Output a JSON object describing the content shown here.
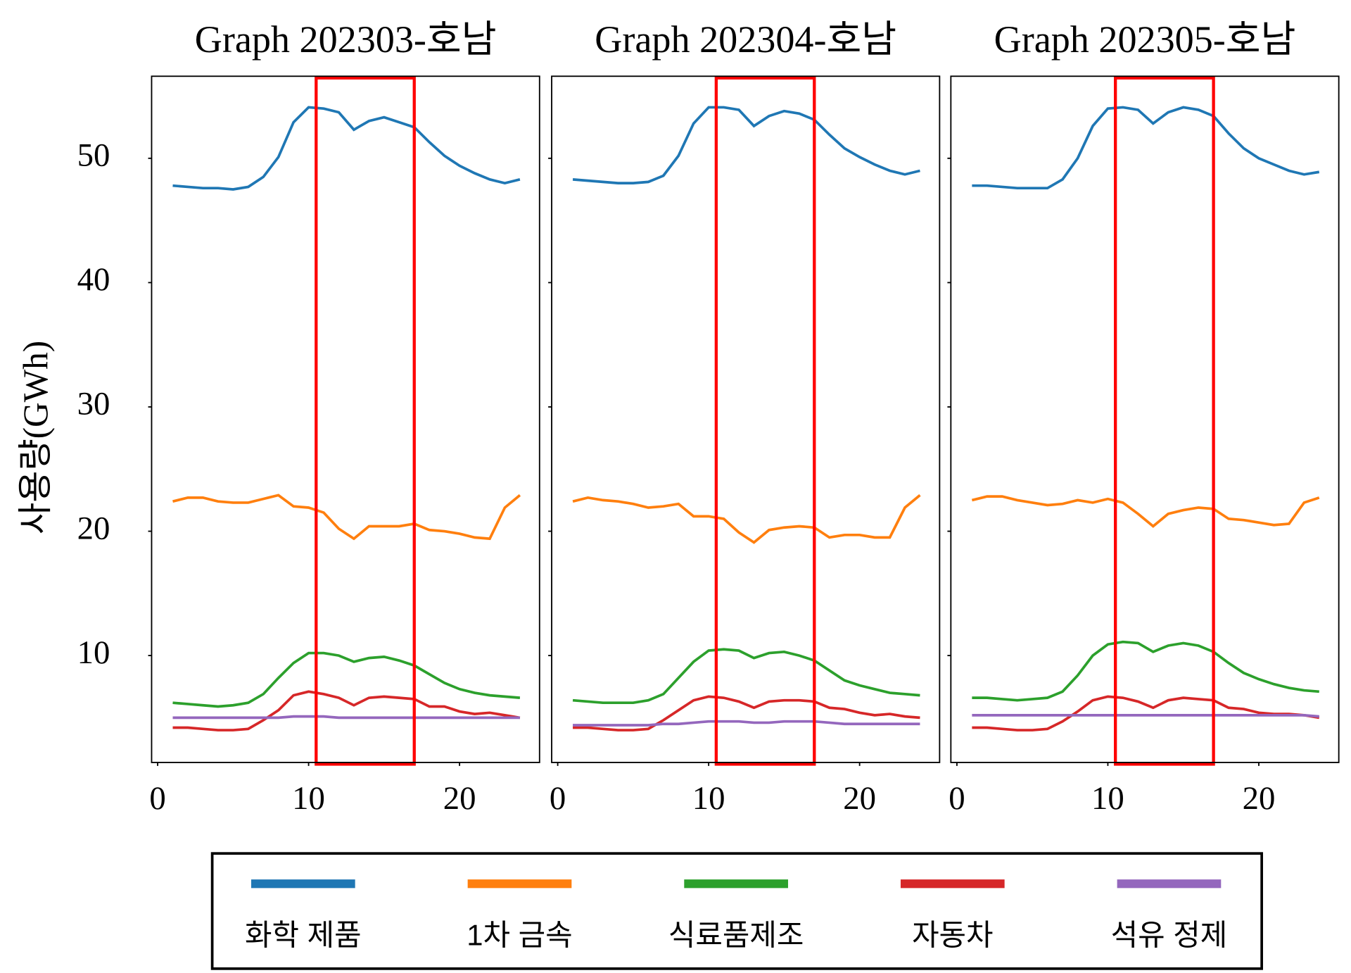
{
  "chart_data": [
    {
      "type": "line",
      "title": "Graph 202303-호남",
      "ylabel": "사용량(GWh)",
      "x": [
        1,
        2,
        3,
        4,
        5,
        6,
        7,
        8,
        9,
        10,
        11,
        12,
        13,
        14,
        15,
        16,
        17,
        18,
        19,
        20,
        21,
        22,
        23,
        24
      ],
      "xlim": [
        -0.4,
        25.3
      ],
      "ylim": [
        1.4,
        56.6
      ],
      "xticks": [
        0,
        10,
        20
      ],
      "yticks": [
        10,
        20,
        30,
        40,
        50
      ],
      "highlight": {
        "xlim": [
          10.5,
          17
        ],
        "color": "#ff0000"
      },
      "series": [
        {
          "name": "화학 제품",
          "color": "#1f77b4",
          "values": [
            47.8,
            47.7,
            47.6,
            47.6,
            47.5,
            47.7,
            48.5,
            50.1,
            52.9,
            54.1,
            54.0,
            53.7,
            52.3,
            53.0,
            53.3,
            52.9,
            52.5,
            51.3,
            50.2,
            49.4,
            48.8,
            48.3,
            48.0,
            48.3
          ]
        },
        {
          "name": "1차 금속",
          "color": "#ff7f0e",
          "values": [
            22.4,
            22.7,
            22.7,
            22.4,
            22.3,
            22.3,
            22.6,
            22.9,
            22.0,
            21.9,
            21.5,
            20.2,
            19.4,
            20.4,
            20.4,
            20.4,
            20.6,
            20.1,
            20.0,
            19.8,
            19.5,
            19.4,
            21.9,
            22.9
          ]
        },
        {
          "name": "식료품제조",
          "color": "#2ca02c",
          "values": [
            6.2,
            6.1,
            6.0,
            5.9,
            6.0,
            6.2,
            6.9,
            8.2,
            9.4,
            10.2,
            10.2,
            10.0,
            9.5,
            9.8,
            9.9,
            9.6,
            9.2,
            8.5,
            7.8,
            7.3,
            7.0,
            6.8,
            6.7,
            6.6
          ]
        },
        {
          "name": "자동차",
          "color": "#d62728",
          "values": [
            4.2,
            4.2,
            4.1,
            4.0,
            4.0,
            4.1,
            4.8,
            5.6,
            6.8,
            7.1,
            6.9,
            6.6,
            6.0,
            6.6,
            6.7,
            6.6,
            6.5,
            5.9,
            5.9,
            5.5,
            5.3,
            5.4,
            5.2,
            5.0
          ]
        },
        {
          "name": "석유 정제",
          "color": "#9467bd",
          "values": [
            5.0,
            5.0,
            5.0,
            5.0,
            5.0,
            5.0,
            5.0,
            5.0,
            5.1,
            5.1,
            5.1,
            5.0,
            5.0,
            5.0,
            5.0,
            5.0,
            5.0,
            5.0,
            5.0,
            5.0,
            5.0,
            5.0,
            5.0,
            5.0
          ]
        }
      ]
    },
    {
      "type": "line",
      "title": "Graph 202304-호남",
      "x": [
        1,
        2,
        3,
        4,
        5,
        6,
        7,
        8,
        9,
        10,
        11,
        12,
        13,
        14,
        15,
        16,
        17,
        18,
        19,
        20,
        21,
        22,
        23,
        24
      ],
      "xlim": [
        -0.4,
        25.3
      ],
      "ylim": [
        1.4,
        56.6
      ],
      "xticks": [
        0,
        10,
        20
      ],
      "yticks": [
        10,
        20,
        30,
        40,
        50
      ],
      "highlight": {
        "xlim": [
          10.5,
          17
        ],
        "color": "#ff0000"
      },
      "series": [
        {
          "color": "#1f77b4",
          "values": [
            48.3,
            48.2,
            48.1,
            48.0,
            48.0,
            48.1,
            48.6,
            50.2,
            52.8,
            54.1,
            54.1,
            53.9,
            52.6,
            53.4,
            53.8,
            53.6,
            53.1,
            51.9,
            50.8,
            50.1,
            49.5,
            49.0,
            48.7,
            49.0
          ]
        },
        {
          "color": "#ff7f0e",
          "values": [
            22.4,
            22.7,
            22.5,
            22.4,
            22.2,
            21.9,
            22.0,
            22.2,
            21.2,
            21.2,
            21.0,
            19.9,
            19.1,
            20.1,
            20.3,
            20.4,
            20.3,
            19.5,
            19.7,
            19.7,
            19.5,
            19.5,
            21.9,
            22.9
          ]
        },
        {
          "color": "#2ca02c",
          "values": [
            6.4,
            6.3,
            6.2,
            6.2,
            6.2,
            6.4,
            6.9,
            8.2,
            9.5,
            10.4,
            10.5,
            10.4,
            9.8,
            10.2,
            10.3,
            10.0,
            9.6,
            8.8,
            8.0,
            7.6,
            7.3,
            7.0,
            6.9,
            6.8
          ]
        },
        {
          "color": "#d62728",
          "values": [
            4.2,
            4.2,
            4.1,
            4.0,
            4.0,
            4.1,
            4.8,
            5.6,
            6.4,
            6.7,
            6.6,
            6.3,
            5.8,
            6.3,
            6.4,
            6.4,
            6.3,
            5.8,
            5.7,
            5.4,
            5.2,
            5.3,
            5.1,
            5.0
          ]
        },
        {
          "color": "#9467bd",
          "values": [
            4.4,
            4.4,
            4.4,
            4.4,
            4.4,
            4.4,
            4.5,
            4.5,
            4.6,
            4.7,
            4.7,
            4.7,
            4.6,
            4.6,
            4.7,
            4.7,
            4.7,
            4.6,
            4.5,
            4.5,
            4.5,
            4.5,
            4.5,
            4.5
          ]
        }
      ]
    },
    {
      "type": "line",
      "title": "Graph 202305-호남",
      "x": [
        1,
        2,
        3,
        4,
        5,
        6,
        7,
        8,
        9,
        10,
        11,
        12,
        13,
        14,
        15,
        16,
        17,
        18,
        19,
        20,
        21,
        22,
        23,
        24
      ],
      "xlim": [
        -0.4,
        25.3
      ],
      "ylim": [
        1.4,
        56.6
      ],
      "xticks": [
        0,
        10,
        20
      ],
      "yticks": [
        10,
        20,
        30,
        40,
        50
      ],
      "highlight": {
        "xlim": [
          10.5,
          17
        ],
        "color": "#ff0000"
      },
      "series": [
        {
          "color": "#1f77b4",
          "values": [
            47.8,
            47.8,
            47.7,
            47.6,
            47.6,
            47.6,
            48.3,
            50.0,
            52.6,
            54.0,
            54.1,
            53.9,
            52.8,
            53.7,
            54.1,
            53.9,
            53.4,
            52.0,
            50.8,
            50.0,
            49.5,
            49.0,
            48.7,
            48.9
          ]
        },
        {
          "color": "#ff7f0e",
          "values": [
            22.5,
            22.8,
            22.8,
            22.5,
            22.3,
            22.1,
            22.2,
            22.5,
            22.3,
            22.6,
            22.3,
            21.4,
            20.4,
            21.4,
            21.7,
            21.9,
            21.8,
            21.0,
            20.9,
            20.7,
            20.5,
            20.6,
            22.3,
            22.7
          ]
        },
        {
          "color": "#2ca02c",
          "values": [
            6.6,
            6.6,
            6.5,
            6.4,
            6.5,
            6.6,
            7.1,
            8.4,
            10.0,
            10.9,
            11.1,
            11.0,
            10.3,
            10.8,
            11.0,
            10.8,
            10.3,
            9.4,
            8.6,
            8.1,
            7.7,
            7.4,
            7.2,
            7.1
          ]
        },
        {
          "color": "#d62728",
          "values": [
            4.2,
            4.2,
            4.1,
            4.0,
            4.0,
            4.1,
            4.7,
            5.5,
            6.4,
            6.7,
            6.6,
            6.3,
            5.8,
            6.4,
            6.6,
            6.5,
            6.4,
            5.8,
            5.7,
            5.4,
            5.3,
            5.3,
            5.2,
            5.0
          ]
        },
        {
          "color": "#9467bd",
          "values": [
            5.2,
            5.2,
            5.2,
            5.2,
            5.2,
            5.2,
            5.2,
            5.2,
            5.2,
            5.2,
            5.2,
            5.2,
            5.2,
            5.2,
            5.2,
            5.2,
            5.2,
            5.2,
            5.2,
            5.2,
            5.2,
            5.2,
            5.2,
            5.1
          ]
        }
      ]
    }
  ]
}
